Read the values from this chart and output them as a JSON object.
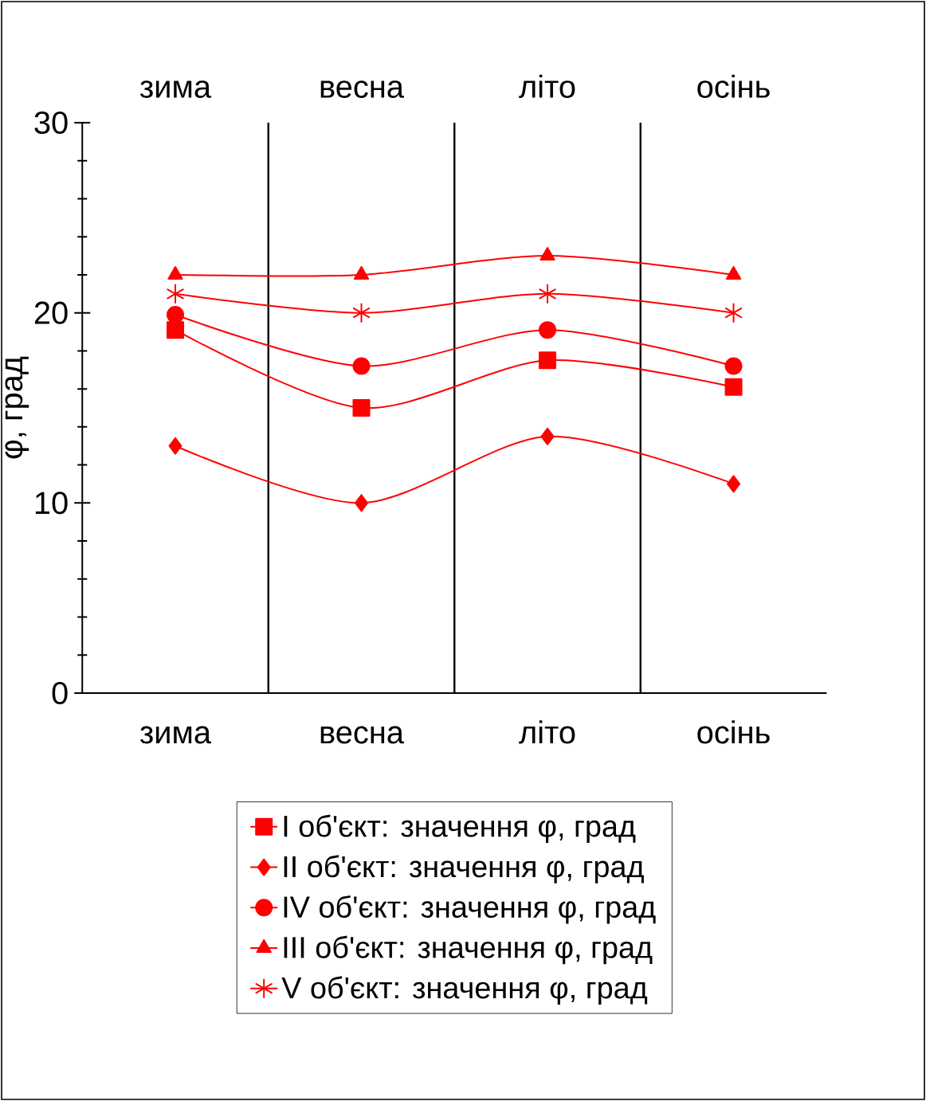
{
  "chart_data": {
    "type": "line",
    "ylabel": "φ, град",
    "categories": [
      "зима",
      "весна",
      "літо",
      "осінь"
    ],
    "ylim": [
      0,
      30
    ],
    "yticks": [
      0,
      10,
      20,
      30
    ],
    "grid": "x",
    "legend": "bottom",
    "line_style": "solid",
    "series": [
      {
        "name": "I об'єкт: значення φ, град",
        "color": "#ff0000",
        "marker": "square",
        "values": [
          19.1,
          15.0,
          17.5,
          16.1
        ]
      },
      {
        "name": "II об'єкт: значення φ, град",
        "color": "#ff0000",
        "marker": "diamond",
        "values": [
          13,
          10,
          13.5,
          11
        ]
      },
      {
        "name": "IV об'єкт: значення φ, град",
        "color": "#ff0000",
        "marker": "circle",
        "values": [
          19.9,
          17.2,
          19.1,
          17.2
        ]
      },
      {
        "name": "III об'єкт: значення φ, град",
        "color": "#ff0000",
        "marker": "triangle",
        "values": [
          22,
          22,
          23,
          22
        ]
      },
      {
        "name": "V об'єкт: значення φ, град",
        "color": "#ff0000",
        "marker": "cross",
        "values": [
          21,
          20,
          21,
          20
        ]
      }
    ]
  }
}
